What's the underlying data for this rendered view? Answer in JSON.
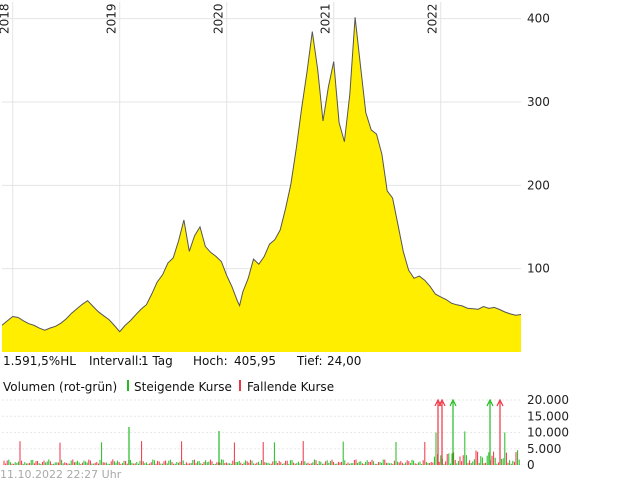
{
  "chart_data": [
    {
      "type": "area",
      "title": "",
      "x_ticks": [
        "2018",
        "2019",
        "2020",
        "2021",
        "2022"
      ],
      "y_ticks": [
        "400",
        "300",
        "200",
        "100"
      ],
      "ylim": [
        0,
        420
      ],
      "xlim": [
        2017.9,
        2022.75
      ],
      "grid": true,
      "color": "#ffee00",
      "line_color": "#555555",
      "series": [
        {
          "x": [
            2017.9,
            2017.95,
            2018.0,
            2018.05,
            2018.1,
            2018.15,
            2018.2,
            2018.25,
            2018.3,
            2018.35,
            2018.4,
            2018.45,
            2018.5,
            2018.55,
            2018.6,
            2018.65,
            2018.7,
            2018.75,
            2018.8,
            2018.85,
            2018.9,
            2018.95,
            2019.0,
            2019.05,
            2019.1,
            2019.15,
            2019.2,
            2019.25,
            2019.3,
            2019.35,
            2019.4,
            2019.45,
            2019.5,
            2019.55,
            2019.6,
            2019.65,
            2019.7,
            2019.75,
            2019.8,
            2019.85,
            2019.9,
            2019.95,
            2020.0,
            2020.05,
            2020.1,
            2020.12,
            2020.15,
            2020.2,
            2020.25,
            2020.3,
            2020.35,
            2020.4,
            2020.45,
            2020.5,
            2020.55,
            2020.6,
            2020.65,
            2020.7,
            2020.75,
            2020.8,
            2020.85,
            2020.9,
            2020.95,
            2021.0,
            2021.05,
            2021.1,
            2021.15,
            2021.2,
            2021.25,
            2021.3,
            2021.35,
            2021.4,
            2021.45,
            2021.5,
            2021.55,
            2021.6,
            2021.65,
            2021.7,
            2021.75,
            2021.8,
            2021.85,
            2021.9,
            2021.95,
            2022.0,
            2022.05,
            2022.1,
            2022.15,
            2022.2,
            2022.25,
            2022.3,
            2022.35,
            2022.4,
            2022.45,
            2022.5,
            2022.55,
            2022.6,
            2022.65,
            2022.7,
            2022.75
          ],
          "values": [
            32,
            36,
            40,
            38,
            34,
            31,
            30,
            28,
            27,
            31,
            34,
            38,
            43,
            49,
            53,
            57,
            60,
            52,
            45,
            40,
            36,
            30,
            24,
            33,
            40,
            48,
            55,
            60,
            72,
            85,
            92,
            105,
            110,
            130,
            155,
            118,
            138,
            150,
            128,
            122,
            118,
            112,
            95,
            80,
            62,
            55,
            70,
            85,
            108,
            102,
            112,
            128,
            135,
            148,
            175,
            205,
            248,
            295,
            338,
            385,
            338,
            275,
            315,
            345,
            272,
            250,
            308,
            402,
            345,
            290,
            270,
            265,
            240,
            195,
            185,
            152,
            118,
            95,
            85,
            88,
            84,
            78,
            70,
            68,
            66,
            62,
            60,
            58,
            54,
            52,
            50,
            52,
            49,
            50,
            48,
            46,
            45,
            45,
            45
          ]
        }
      ]
    },
    {
      "type": "bar",
      "title": "Volumen (rot-grün)",
      "y_ticks": [
        "20.000",
        "15.000",
        "10.000",
        "5.000",
        "0"
      ],
      "ylim": [
        0,
        20000
      ],
      "series": [
        {
          "name": "Steigende Kurse",
          "color": "#22bb22"
        },
        {
          "name": "Fallende Kurse",
          "color": "#ee3344"
        }
      ]
    }
  ],
  "stats": {
    "change": "1.591,5%HL",
    "interval_label": "Intervall:",
    "interval_value": "1 Tag",
    "high_label": "Hoch:",
    "high_value": "405,95",
    "low_label": "Tief:",
    "low_value": "24,00"
  },
  "volume_legend": {
    "title": "Volumen (rot-grün)",
    "up_label": "Steigende Kurse",
    "down_label": "Fallende Kurse",
    "up_color": "#22bb22",
    "down_color": "#ee3344"
  },
  "footer": "11.10.2022 22:27 Uhr"
}
